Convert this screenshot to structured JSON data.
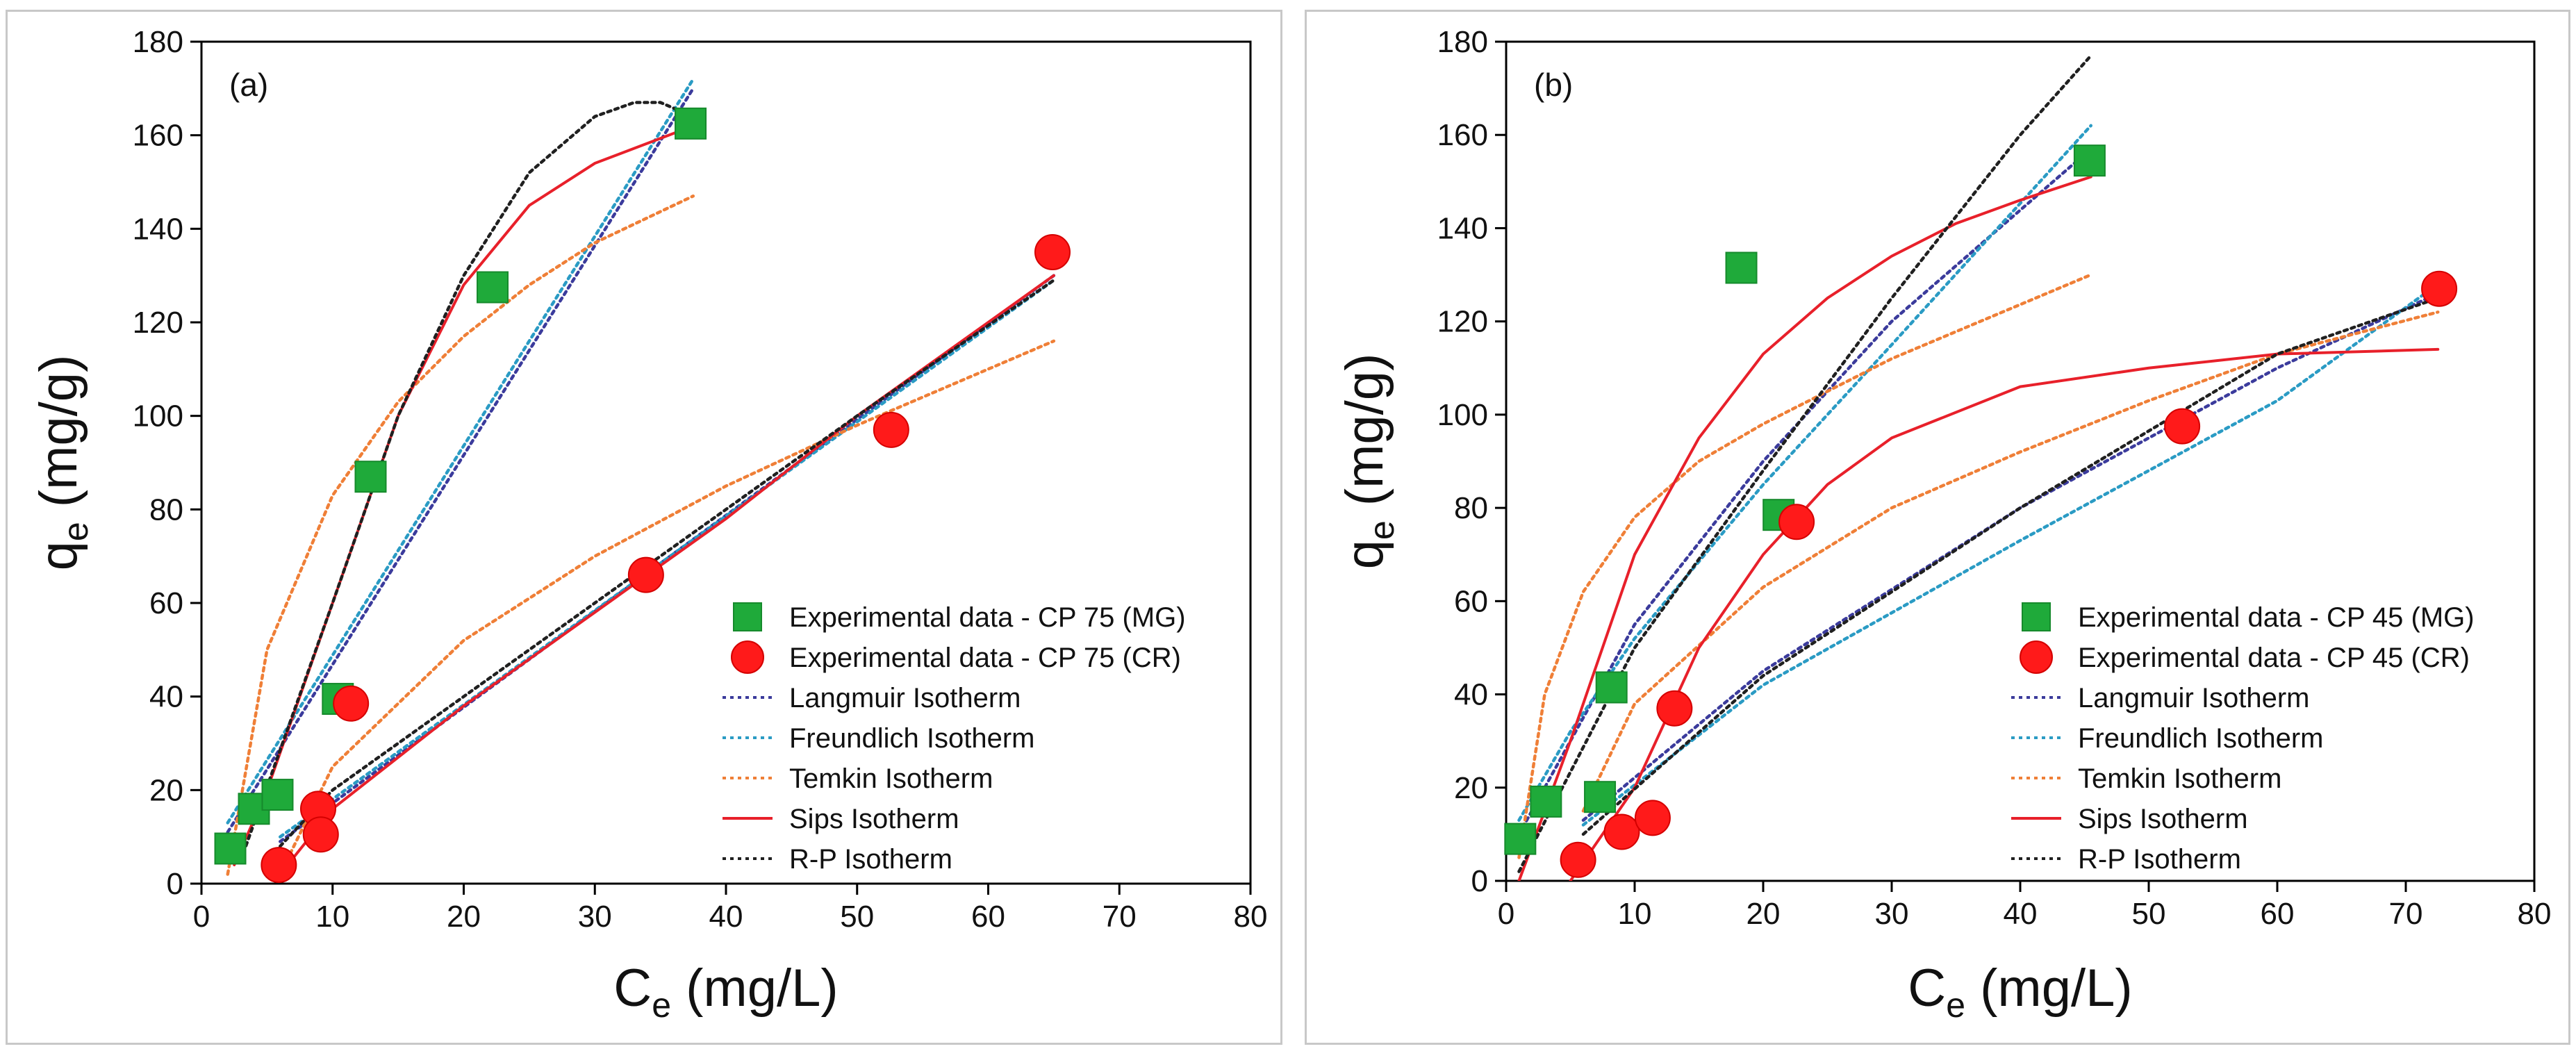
{
  "chart_data": [
    {
      "type": "scatter",
      "panel_label": "(a)",
      "xlabel": {
        "main": "C",
        "sub": "e",
        "unit": " (mg/L)"
      },
      "ylabel": {
        "main": "q",
        "sub": "e",
        "unit": " (mg/g)"
      },
      "xlim": [
        0,
        80
      ],
      "ylim": [
        0,
        180
      ],
      "xticks": [
        0,
        10,
        20,
        30,
        40,
        50,
        60,
        70,
        80
      ],
      "yticks": [
        0,
        20,
        40,
        60,
        80,
        100,
        120,
        140,
        160,
        180
      ],
      "legend_position": "bottom-right",
      "scatter_series": [
        {
          "name": "Experimental data - CP 75 (MG)",
          "marker": "square",
          "color": "#1faa3a",
          "x": [
            2.2,
            4.0,
            5.8,
            10.4,
            12.9,
            22.2,
            37.3
          ],
          "y": [
            7.5,
            16.0,
            19.0,
            39.5,
            87.0,
            127.5,
            162.5
          ]
        },
        {
          "name": "Experimental data - CP 75 (CR)",
          "marker": "circle",
          "color": "#ff1a1a",
          "x": [
            5.9,
            8.9,
            9.1,
            11.4,
            33.9,
            52.6,
            64.9
          ],
          "y": [
            4.0,
            16.0,
            10.5,
            38.5,
            66.0,
            97.0,
            135.0
          ]
        }
      ],
      "fit_series": [
        {
          "name": "Langmuir Isotherm",
          "color": "#3b3b9c",
          "dash": "dotted",
          "x": [
            2,
            37.5
          ],
          "y": [
            11,
            170
          ],
          "x2": [
            6,
            65
          ],
          "y2": [
            9,
            130
          ]
        },
        {
          "name": "Freundlich Isotherm",
          "color": "#2a9bc4",
          "dash": "dotted",
          "x": [
            2,
            37.5
          ],
          "y": [
            13,
            172
          ],
          "x2": [
            6,
            65
          ],
          "y2": [
            10,
            129
          ]
        },
        {
          "name": "Temkin Isotherm",
          "color": "#ef7f37",
          "dash": "dotted",
          "x": [
            2,
            5,
            10,
            15,
            20,
            25,
            30,
            37.5
          ],
          "y": [
            2,
            50,
            83,
            103,
            117,
            128,
            137,
            147
          ],
          "x2": [
            6,
            10,
            20,
            30,
            40,
            50,
            65
          ],
          "y2": [
            2,
            25,
            52,
            70,
            85,
            98,
            116
          ]
        },
        {
          "name": "Sips Isotherm",
          "color": "#e8202a",
          "dash": "solid",
          "x": [
            2.5,
            5,
            10,
            15,
            20,
            25,
            30,
            37.5
          ],
          "y": [
            4,
            20,
            60,
            100,
            128,
            145,
            154,
            162
          ],
          "x2": [
            6,
            10,
            20,
            30,
            40,
            50,
            65
          ],
          "y2": [
            2,
            16,
            38,
            58,
            78,
            100,
            130
          ]
        },
        {
          "name": "R-P Isotherm",
          "color": "#202020",
          "dash": "dotted",
          "x": [
            3,
            10,
            15,
            20,
            25,
            30,
            33,
            35,
            37.5
          ],
          "y": [
            5,
            60,
            100,
            130,
            152,
            164,
            167,
            167,
            164
          ],
          "x2": [
            6,
            10,
            20,
            30,
            40,
            50,
            65
          ],
          "y2": [
            8,
            20,
            40,
            60,
            80,
            100,
            129
          ]
        }
      ]
    },
    {
      "type": "scatter",
      "panel_label": "(b)",
      "xlabel": {
        "main": "C",
        "sub": "e",
        "unit": " (mg/L)"
      },
      "ylabel": {
        "main": "q",
        "sub": "e",
        "unit": " (mg/g)"
      },
      "xlim": [
        0,
        80
      ],
      "ylim": [
        0,
        180
      ],
      "xticks": [
        0,
        10,
        20,
        30,
        40,
        50,
        60,
        70,
        80
      ],
      "yticks": [
        0,
        20,
        40,
        60,
        80,
        100,
        120,
        140,
        160,
        180
      ],
      "legend_position": "bottom-right",
      "scatter_series": [
        {
          "name": "Experimental data - CP 45 (MG)",
          "marker": "square",
          "color": "#1faa3a",
          "x": [
            1.1,
            3.1,
            7.3,
            8.2,
            18.3,
            21.2,
            45.4
          ],
          "y": [
            9.0,
            17.0,
            18.0,
            41.5,
            131.5,
            78.5,
            154.5
          ]
        },
        {
          "name": "Experimental data - CP 45 (CR)",
          "marker": "circle",
          "color": "#ff1a1a",
          "x": [
            5.6,
            9.0,
            11.4,
            13.1,
            22.6,
            52.6,
            72.6
          ],
          "y": [
            4.5,
            10.5,
            13.5,
            37.0,
            77.0,
            97.5,
            127.0
          ]
        }
      ],
      "fit_series": [
        {
          "name": "Langmuir Isotherm",
          "color": "#3b3b9c",
          "dash": "dotted",
          "x": [
            1,
            5,
            10,
            20,
            30,
            45.5
          ],
          "y": [
            10,
            30,
            55,
            90,
            120,
            157
          ],
          "x2": [
            6,
            20,
            40,
            60,
            72.5
          ],
          "y2": [
            13,
            45,
            80,
            110,
            126
          ]
        },
        {
          "name": "Freundlich Isotherm",
          "color": "#2a9bc4",
          "dash": "dotted",
          "x": [
            1,
            5,
            10,
            20,
            30,
            45.5
          ],
          "y": [
            13,
            32,
            52,
            85,
            115,
            162
          ],
          "x2": [
            6,
            20,
            40,
            60,
            72.5
          ],
          "y2": [
            12,
            42,
            73,
            103,
            128
          ]
        },
        {
          "name": "Temkin Isotherm",
          "color": "#ef7f37",
          "dash": "dotted",
          "x": [
            1,
            3,
            6,
            10,
            15,
            20,
            30,
            45.5
          ],
          "y": [
            5,
            40,
            62,
            78,
            90,
            98,
            112,
            130
          ],
          "x2": [
            6,
            10,
            20,
            30,
            40,
            50,
            60,
            72.5
          ],
          "y2": [
            15,
            38,
            63,
            80,
            92,
            103,
            113,
            122
          ]
        },
        {
          "name": "Sips Isotherm",
          "color": "#e8202a",
          "dash": "solid",
          "x": [
            1,
            5,
            10,
            15,
            20,
            25,
            30,
            35,
            40,
            45.5
          ],
          "y": [
            0,
            30,
            70,
            95,
            113,
            125,
            134,
            141,
            146,
            151
          ],
          "x2": [
            5,
            10,
            15,
            20,
            25,
            30,
            40,
            50,
            60,
            72.5
          ],
          "y2": [
            0,
            20,
            50,
            70,
            85,
            95,
            106,
            110,
            113,
            114
          ]
        },
        {
          "name": "R-P Isotherm",
          "color": "#202020",
          "dash": "dotted",
          "x": [
            1,
            10,
            20,
            30,
            40,
            45.5
          ],
          "y": [
            2,
            50,
            88,
            125,
            160,
            177
          ],
          "x2": [
            6,
            20,
            40,
            60,
            72.5
          ],
          "y2": [
            10,
            44,
            80,
            113,
            125
          ]
        }
      ]
    }
  ]
}
